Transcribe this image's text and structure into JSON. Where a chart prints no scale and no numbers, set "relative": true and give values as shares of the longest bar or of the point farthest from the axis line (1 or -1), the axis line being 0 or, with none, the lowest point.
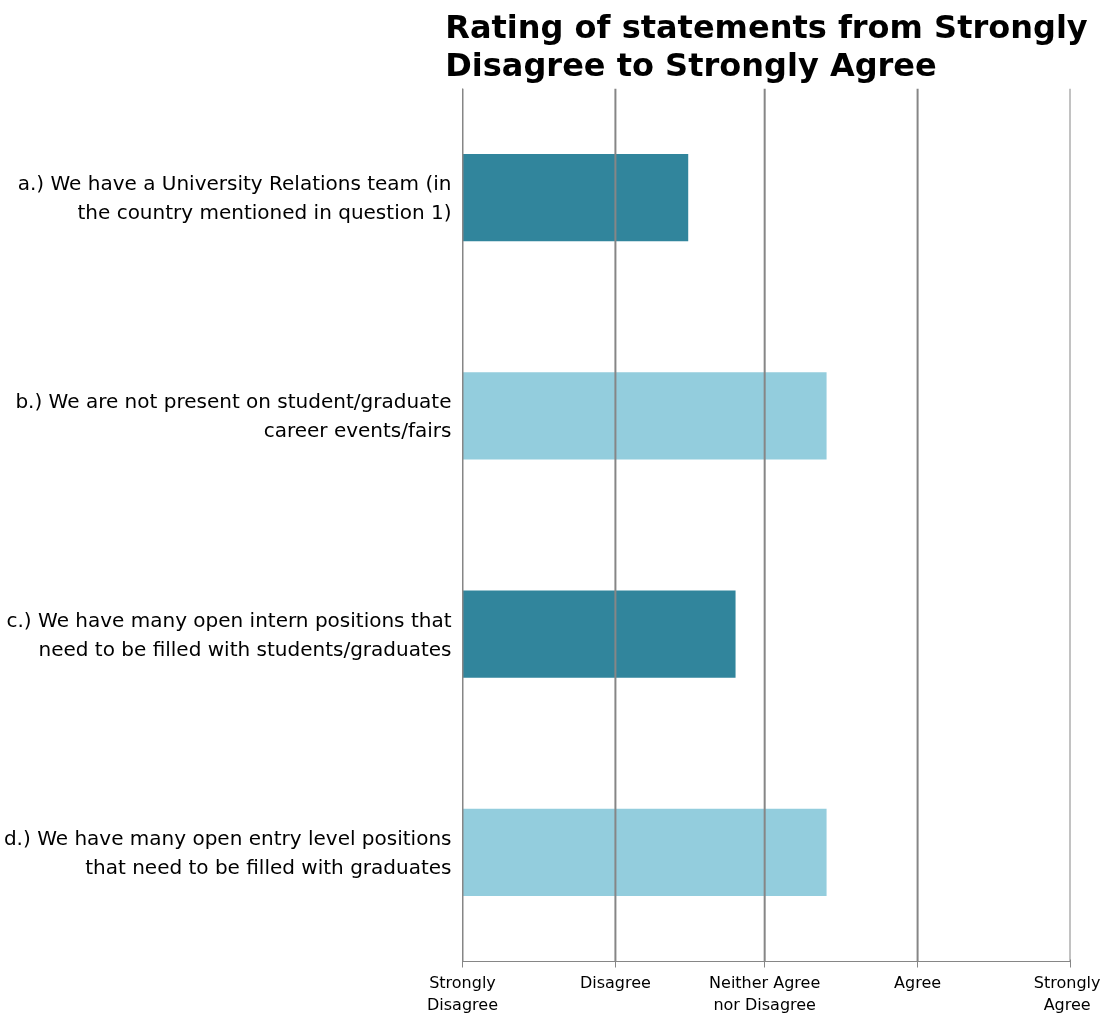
{
  "chart_data": {
    "type": "bar",
    "orientation": "horizontal",
    "relative": true,
    "title": "Rating of statements from Strongly Disagree to Strongly Agree",
    "categories": [
      "a.) We have a University Relations team (in the country mentioned in question 1)",
      "b.) We are not present on student/graduate career events/fairs",
      "c.) We have many open intern positions that need to be filled with students/graduates",
      "d.) We have many open entry level positions that need to be filled with graduates"
    ],
    "values": [
      0.62,
      1,
      0.75,
      1
    ],
    "colors": [
      "#31859c",
      "#93cddd",
      "#31859c",
      "#93cddd"
    ],
    "ref_lines": [
      {
        "axis": "x",
        "value": 0,
        "label": "Strongly Disagree",
        "color": "#868686"
      },
      {
        "axis": "x",
        "value": 0.42,
        "label": "Disagree",
        "color": "#868686"
      },
      {
        "axis": "x",
        "value": 0.83,
        "label": "Neither Agree nor Disagree",
        "color": "#868686"
      },
      {
        "axis": "x",
        "value": 1.25,
        "label": "Agree",
        "color": "#868686"
      },
      {
        "axis": "x",
        "value": 1.67,
        "label": "Strongly Agree",
        "color": "#868686"
      }
    ]
  }
}
